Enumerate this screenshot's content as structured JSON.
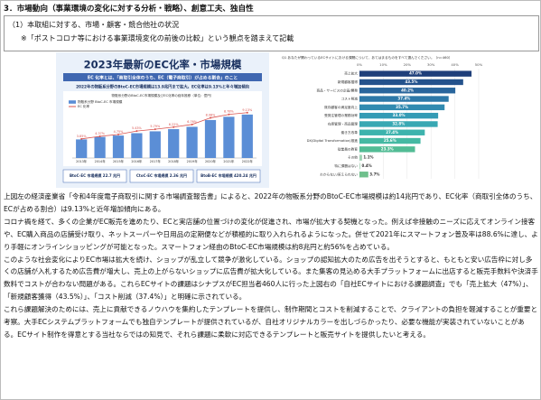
{
  "heading": "3．市場動向（事業環境の変化に対する分析・戦略）、創意工夫、独自性",
  "box": {
    "lines": [
      "（1）本取組に対する、市場・顧客・競合他社の状況",
      "※「ポストコロナ等における事業環境変化の前後の比較」という観点を踏まえて記載"
    ]
  },
  "chart_data": [
    {
      "type": "bar",
      "title": "2023年最新のEC化率・市場規模",
      "subtitle": "EC 化率とは、「商取引全体のうち、EC（電子商取引）が占める割合」のこと",
      "note": "2022年の物販系分野のBtoC-EC市場規模は13.9兆円まで拡大。EC化率は9.13%と年々増加傾向",
      "chart_title": "物販系分野のBtoC-EC市場規模及びEC化率の経年推移（単位：億円）",
      "categories": [
        "2013年",
        "2014年",
        "2015年",
        "2016年",
        "2017年",
        "2018年",
        "2019年",
        "2020年",
        "2021年",
        "2022年"
      ],
      "series": [
        {
          "name": "物販系分野 BtoC-EC 市場規模",
          "color": "#5b8ed6",
          "values": [
            59931,
            68043,
            72398,
            80043,
            86008,
            92992,
            100515,
            122333,
            132865,
            139997
          ]
        },
        {
          "name": "EC 化率",
          "color": "#d9534f",
          "axis": "y2",
          "values": [
            3.85,
            4.37,
            4.75,
            5.43,
            5.79,
            6.22,
            6.76,
            8.08,
            8.78,
            9.13
          ],
          "value_labels": [
            "3.85%",
            "4.37%",
            "4.75%",
            "5.43%",
            "5.79%",
            "6.22%",
            "6.76%",
            "8.08%",
            "8.78%",
            "9.13%"
          ]
        }
      ],
      "ylim": [
        0,
        160000
      ],
      "y2lim": [
        0,
        10
      ],
      "footer": [
        "BtoC-EC 市場規模 22.7 兆円",
        "CtoC-EC 市場規模 2.36 兆円",
        "BtoB-EC 市場規模 420.24 兆円"
      ]
    },
    {
      "type": "hbar",
      "title": "Q1 あなたが関わっているECサイトにおける課題について、あてはまるものをすべて選んでください。（n=460）",
      "categories": [
        "売上拡大",
        "新規顧客獲得",
        "商品・サービスの企画/開発",
        "コスト削減",
        "既存顧客の満足度向上",
        "受発注管理の業務効率",
        "在庫管理・商品管理",
        "働き方改革",
        "DX(Digital Transformation)推進",
        "従業員の教育",
        "その他",
        "特に課題はない",
        "わからない/答えられない"
      ],
      "values": [
        47.0,
        43.5,
        40.2,
        37.4,
        35.7,
        33.0,
        32.8,
        27.4,
        25.6,
        23.3,
        1.1,
        0.4,
        3.7
      ],
      "value_labels": [
        "47.0%",
        "43.5%",
        "40.2%",
        "37.4%",
        "35.7%",
        "33.0%",
        "32.8%",
        "27.4%",
        "25.6%",
        "23.3%",
        "1.1%",
        "0.4%",
        "3.7%"
      ],
      "colors": [
        "#1f3f7a",
        "#24528c",
        "#29659c",
        "#2d78a8",
        "#318ab0",
        "#349bb5",
        "#38a8b3",
        "#3db3ad",
        "#45b9a3",
        "#52bc95",
        "#9fd4b4",
        "#b8dfc6",
        "#6fc08c"
      ],
      "xlim": [
        0,
        50
      ],
      "xticks": [
        {
          "value": 0,
          "label": "0%"
        },
        {
          "value": 10,
          "label": "10%"
        },
        {
          "value": 20,
          "label": "20%"
        },
        {
          "value": 30,
          "label": "30%"
        },
        {
          "value": 40,
          "label": "40%"
        },
        {
          "value": 50,
          "label": "50%"
        }
      ],
      "grid": true
    }
  ],
  "paragraphs": [
    "上図左の経済産業省「令和4年度電子商取引に関する市場調査報告書」によると、2022年の物販系分野のBtoC-EC市場規模は約14兆円であり、EC化率（商取引全体のうち、ECが占める割合）は9.13%と近年増加傾向にある。",
    "コロナ禍を経て、多くの企業がEC販売を進めたり、ECと実店舗の位置づけの変化が促進され、市場が拡大する契機となった。例えば非接触のニーズに応えてオンライン接客や、EC購入商品の店舗受け取り、ネットスーパーや日用品の定期便などが積極的に取り入れられるようになった。併せて2021年にスマートフォン普及率は88.6%に達し、より手軽にオンラインショッピングが可能となった。スマートフォン経由のBtoC-EC市場規模は約8兆円と約56%を占めている。",
    "このような社会変化によりEC市場は拡大を続け、ショップが乱立して競争が激化している。ショップの認知拡大のため広告を出そうとすると、もともと安い広告枠に対し多くの店舗が入札するため広告費が増大し、売上の上がらないショップに広告費が拡大化している。また集客の見込める大手プラットフォームに出店すると販売手数料や決済手数料でコストが合わない問題がある。これらECサイトの課題はシナプスがEC担当者460人に行った上図右の「自社ECサイトにおける課題調査」でも「売上拡大（47%）」、「新規顧客獲得（43.5%）」、「コスト削減（37.4%）」と明確に示されている。",
    "これら課題解決のためには、売上に貢献できるノウハウを集約したテンプレートを提供し、制作期間とコストを削減することで、クライアントの負担を軽減することが重要と考察。大手ECシステムプラットフォームでも独自テンプレートが提供されているが、自社オリジナルカラーを出しづらかったり、必要な機能が実装されていないことがある。ECサイト制作を得意とする当社ならではの知見で、それら課題に柔軟に対応できるテンプレートと販売サイトを提供したいと考える。"
  ]
}
